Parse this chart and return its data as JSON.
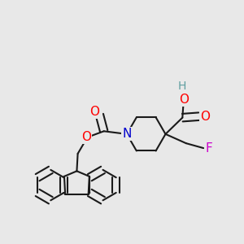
{
  "background_color": "#e8e8e8",
  "bond_color": "#1a1a1a",
  "atom_colors": {
    "O": "#ff0000",
    "N": "#0000cc",
    "F": "#cc00cc",
    "H": "#5f9ea0",
    "C": "#1a1a1a"
  },
  "bond_width": 1.5,
  "font_size_atom": 9,
  "figsize": [
    3.0,
    3.0
  ],
  "dpi": 100,
  "xlim": [
    0,
    1
  ],
  "ylim": [
    0,
    1
  ]
}
